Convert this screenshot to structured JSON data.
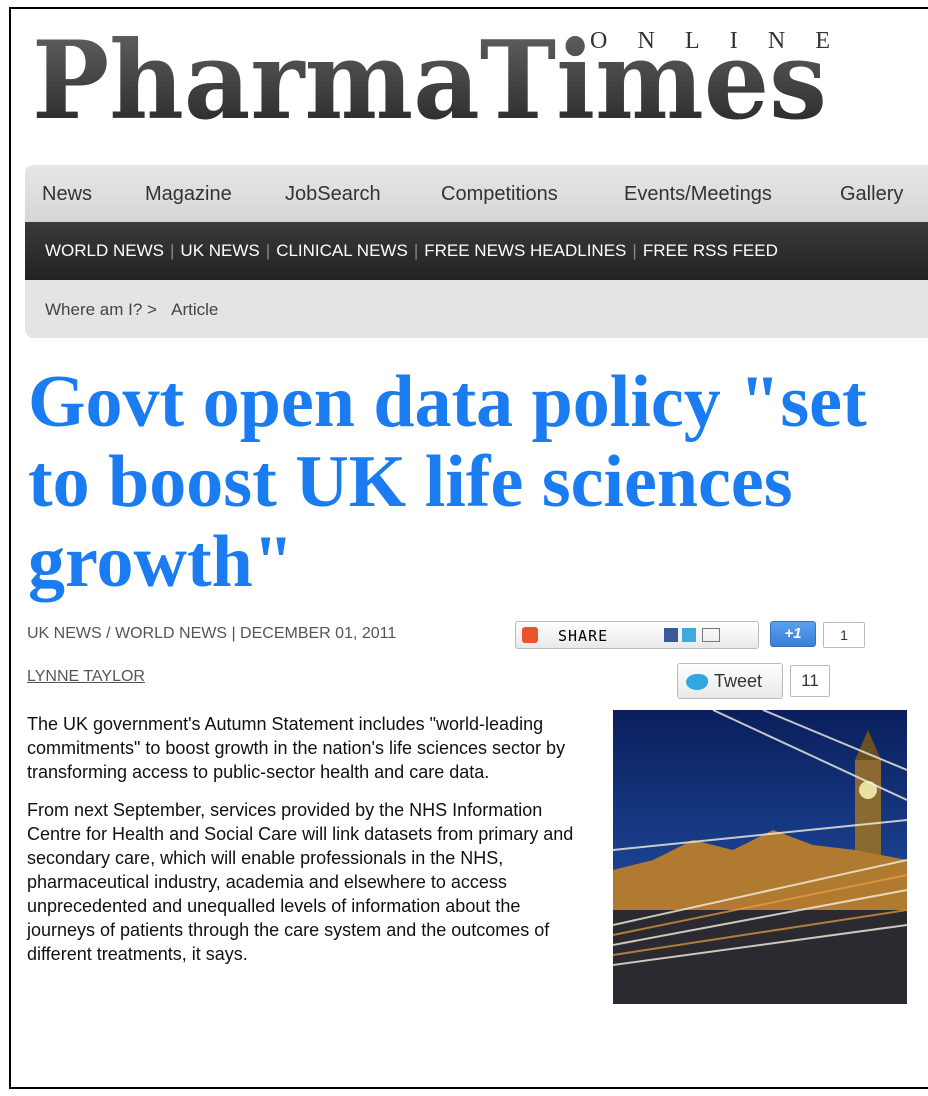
{
  "logo": {
    "title": "PharmaTimes",
    "subtitle": "ONLINE"
  },
  "nav": [
    "News",
    "Magazine",
    "JobSearch",
    "Competitions",
    "Events/Meetings",
    "Gallery"
  ],
  "subnav": [
    "WORLD NEWS",
    "UK NEWS",
    "CLINICAL NEWS",
    "FREE NEWS HEADLINES",
    "FREE RSS FEED"
  ],
  "breadcrumb": {
    "label": "Where am I? >",
    "current": "Article"
  },
  "article": {
    "headline": "Govt open data policy \"set to boost UK life sciences growth\"",
    "meta": "UK NEWS / WORLD NEWS | DECEMBER 01, 2011",
    "author": "LYNNE TAYLOR",
    "share": {
      "label": "SHARE",
      "plus_label": "+1",
      "plus_count": "1",
      "tweet_label": "Tweet",
      "tweet_count": "11"
    },
    "paragraphs": [
      "The UK government's Autumn Statement includes \"world-leading commitments\" to boost growth in the nation's life sciences sector by transforming access to public-sector health and care data.",
      "From next September, services provided by the NHS Information Centre for Health and Social Care will link datasets from primary and secondary care, which will enable professionals in the NHS, pharmaceutical industry, academia and elsewhere to access unprecedented and unequalled levels of information about the journeys of patients through the care system and the outcomes of different treatments, it says."
    ]
  }
}
